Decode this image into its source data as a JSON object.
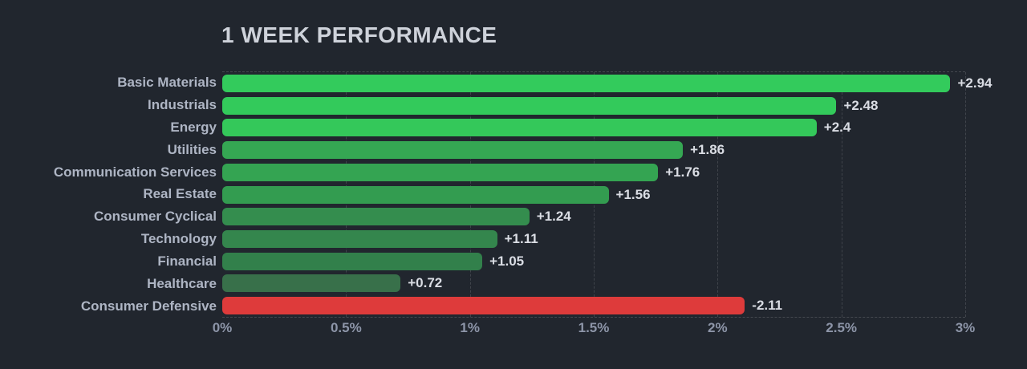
{
  "theme": {
    "background": "#21262e",
    "title_color": "#ced2da",
    "category_label_color": "#aeb5c4",
    "value_label_color": "#dadde4",
    "tick_label_color": "#8d95a8",
    "gridline_color": "#3e4350",
    "positive_color_max": "#33cb5c",
    "positive_color_min": "#38704a",
    "negative_color": "#de3b3b"
  },
  "chart_data": {
    "type": "bar",
    "orientation": "horizontal",
    "title": "1 WEEK PERFORMANCE",
    "categories": [
      "Basic Materials",
      "Industrials",
      "Energy",
      "Utilities",
      "Communication Services",
      "Real Estate",
      "Consumer Cyclical",
      "Technology",
      "Financial",
      "Healthcare",
      "Consumer Defensive"
    ],
    "values": [
      2.94,
      2.48,
      2.4,
      1.86,
      1.76,
      1.56,
      1.24,
      1.11,
      1.05,
      0.72,
      -2.11
    ],
    "value_labels": [
      "+2.94",
      "+2.48",
      "+2.4",
      "+1.86",
      "+1.76",
      "+1.56",
      "+1.24",
      "+1.11",
      "+1.05",
      "+0.72",
      "-2.11"
    ],
    "bar_colors": [
      "#33cb5c",
      "#33ca5b",
      "#34c85a",
      "#35a753",
      "#34a452",
      "#339c50",
      "#348d4e",
      "#34864d",
      "#32804b",
      "#38704a",
      "#de3b3b"
    ],
    "x_tick_labels": [
      "0%",
      "0.5%",
      "1%",
      "1.5%",
      "2%",
      "2.5%",
      "3%"
    ],
    "x_tick_values": [
      0,
      0.5,
      1,
      1.5,
      2,
      2.5,
      3
    ],
    "xlim": [
      0,
      3
    ],
    "grid": "vertical-dashed",
    "legend": "none",
    "xlabel": "",
    "ylabel": ""
  }
}
